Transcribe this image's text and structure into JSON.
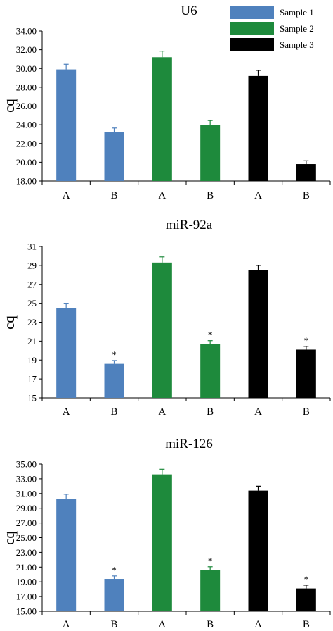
{
  "legend": {
    "items": [
      {
        "label": "Sample 1",
        "color": "#4f81bd"
      },
      {
        "label": "Sample 2",
        "color": "#1e8a3c"
      },
      {
        "label": "Sample 3",
        "color": "#000000"
      }
    ],
    "placement": "top-right"
  },
  "chart_data": [
    {
      "type": "bar",
      "title": "U6",
      "ylabel": "cq",
      "ylim": [
        18,
        34
      ],
      "yticks": [
        "18.00",
        "20.00",
        "22.00",
        "24.00",
        "26.00",
        "28.00",
        "30.00",
        "32.00",
        "34.00"
      ],
      "categories": [
        "A",
        "B",
        "A",
        "B",
        "A",
        "B"
      ],
      "series_names": [
        "Sample 1",
        "Sample 1",
        "Sample 2",
        "Sample 2",
        "Sample 3",
        "Sample 3"
      ],
      "values": [
        29.9,
        23.2,
        31.2,
        24.0,
        29.2,
        19.8
      ],
      "errors": [
        0.55,
        0.45,
        0.65,
        0.45,
        0.6,
        0.35
      ],
      "significance": [
        "",
        "",
        "",
        "",
        "",
        ""
      ],
      "grid": false
    },
    {
      "type": "bar",
      "title": "miR-92a",
      "ylabel": "cq",
      "ylim": [
        15,
        31
      ],
      "yticks": [
        "15",
        "17",
        "19",
        "21",
        "23",
        "25",
        "27",
        "29",
        "31"
      ],
      "categories": [
        "A",
        "B",
        "A",
        "B",
        "A",
        "B"
      ],
      "series_names": [
        "Sample 1",
        "Sample 1",
        "Sample 2",
        "Sample 2",
        "Sample 3",
        "Sample 3"
      ],
      "values": [
        24.5,
        18.6,
        29.3,
        20.7,
        28.5,
        20.1
      ],
      "errors": [
        0.5,
        0.35,
        0.6,
        0.35,
        0.5,
        0.35
      ],
      "significance": [
        "",
        "*",
        "",
        "*",
        "",
        "*"
      ],
      "grid": false
    },
    {
      "type": "bar",
      "title": "miR-126",
      "ylabel": "cq",
      "ylim": [
        15,
        35
      ],
      "yticks": [
        "15.00",
        "17.00",
        "19.00",
        "21.00",
        "23.00",
        "25.00",
        "27.00",
        "29.00",
        "31.00",
        "33.00",
        "35.00"
      ],
      "categories": [
        "A",
        "B",
        "A",
        "B",
        "A",
        "B"
      ],
      "series_names": [
        "Sample 1",
        "Sample 1",
        "Sample 2",
        "Sample 2",
        "Sample 3",
        "Sample 3"
      ],
      "values": [
        30.3,
        19.4,
        33.6,
        20.6,
        31.4,
        18.1
      ],
      "errors": [
        0.6,
        0.4,
        0.7,
        0.45,
        0.6,
        0.45
      ],
      "significance": [
        "",
        "*",
        "",
        "*",
        "",
        "*"
      ],
      "grid": false
    }
  ]
}
